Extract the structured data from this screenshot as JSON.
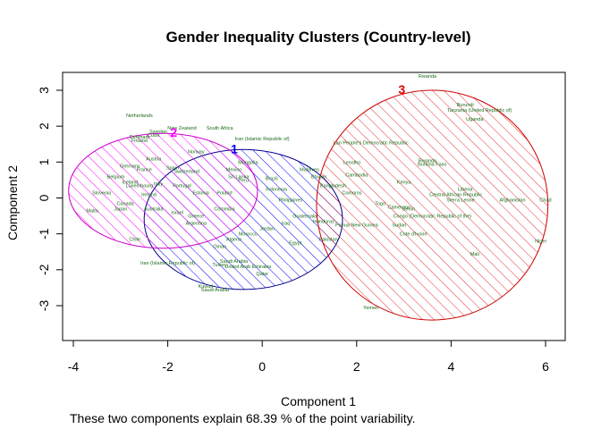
{
  "chart_data": {
    "type": "scatter",
    "title": "Gender Inequality Clusters (Country-level)",
    "xlabel": "Component 1",
    "ylabel": "Component 2",
    "footer": "These two components explain 68.39 % of the point variability.",
    "xlim": [
      -4,
      6
    ],
    "ylim": [
      -3,
      3
    ],
    "xticks": [
      "-4",
      "-2",
      "0",
      "2",
      "4",
      "6"
    ],
    "yticks": [
      "-3",
      "-2",
      "-1",
      "0",
      "1",
      "2",
      "3"
    ],
    "grid": false,
    "clusters": [
      {
        "label": "1",
        "color": "#0000ff",
        "border": "#00008b",
        "center": [
          -0.4,
          -0.6
        ],
        "rx": 2.1,
        "ry": 1.95
      },
      {
        "label": "2",
        "color": "#ff00ff",
        "border": "#cc00cc",
        "center": [
          -2.1,
          0.2
        ],
        "rx": 2.0,
        "ry": 1.6
      },
      {
        "label": "3",
        "color": "#dd0000",
        "border": "#cc0000",
        "center": [
          3.6,
          -0.2
        ],
        "rx": 2.45,
        "ry": 3.2
      }
    ],
    "points": [
      {
        "label": "Rwanda",
        "x": 3.5,
        "y": 3.35
      },
      {
        "label": "Burundi",
        "x": 4.3,
        "y": 2.55
      },
      {
        "label": "Tanzania (United Republic of)",
        "x": 4.6,
        "y": 2.4
      },
      {
        "label": "Uganda",
        "x": 4.5,
        "y": 2.15
      },
      {
        "label": "Lao People's Democratic Republic",
        "x": 2.3,
        "y": 1.5
      },
      {
        "label": "Lesotho",
        "x": 1.9,
        "y": 0.95
      },
      {
        "label": "Cambodia",
        "x": 2.0,
        "y": 0.6
      },
      {
        "label": "Bangladesh",
        "x": 1.5,
        "y": 0.3
      },
      {
        "label": "Rwanda",
        "x": 3.5,
        "y": 1.0
      },
      {
        "label": "Burkina Faso",
        "x": 3.6,
        "y": 0.9
      },
      {
        "label": "Kenya",
        "x": 3.0,
        "y": 0.4
      },
      {
        "label": "Liberia",
        "x": 4.3,
        "y": 0.2
      },
      {
        "label": "Central African Republic",
        "x": 4.1,
        "y": 0.05
      },
      {
        "label": "Sierra Leone",
        "x": 4.2,
        "y": -0.1
      },
      {
        "label": "Afghanistan",
        "x": 5.3,
        "y": -0.1
      },
      {
        "label": "Chad",
        "x": 6.0,
        "y": -0.1
      },
      {
        "label": "Comoros",
        "x": 1.9,
        "y": 0.1
      },
      {
        "label": "Togo",
        "x": 2.5,
        "y": -0.2
      },
      {
        "label": "Cameroon",
        "x": 2.9,
        "y": -0.3
      },
      {
        "label": "Benin",
        "x": 3.1,
        "y": -0.35
      },
      {
        "label": "Congo (Democratic Republic of the)",
        "x": 3.6,
        "y": -0.55
      },
      {
        "label": "Papua New Guinea",
        "x": 2.0,
        "y": -0.8
      },
      {
        "label": "Sudan",
        "x": 2.9,
        "y": -0.8
      },
      {
        "label": "Cote d'Ivoire",
        "x": 3.2,
        "y": -1.05
      },
      {
        "label": "Pakistan",
        "x": 1.4,
        "y": -1.2
      },
      {
        "label": "Niger",
        "x": 5.9,
        "y": -1.25
      },
      {
        "label": "Mali",
        "x": 4.5,
        "y": -1.6
      },
      {
        "label": "Yemen",
        "x": 2.3,
        "y": -3.1
      },
      {
        "label": "Iran (Islamic Republic of)",
        "x": 0.0,
        "y": 1.6
      },
      {
        "label": "Maldives",
        "x": 1.0,
        "y": 0.75
      },
      {
        "label": "Bhutan",
        "x": 1.2,
        "y": 0.55
      },
      {
        "label": "Mongolia",
        "x": -0.3,
        "y": 0.95
      },
      {
        "label": "Sri Lanka",
        "x": -0.5,
        "y": 0.55
      },
      {
        "label": "Indonesia",
        "x": 0.3,
        "y": 0.2
      },
      {
        "label": "Philippines",
        "x": 0.6,
        "y": -0.1
      },
      {
        "label": "Guatemala",
        "x": 0.9,
        "y": -0.55
      },
      {
        "label": "Honduras",
        "x": 1.3,
        "y": -0.7
      },
      {
        "label": "Iraq",
        "x": 0.5,
        "y": -0.75
      },
      {
        "label": "Egypt",
        "x": 0.7,
        "y": -1.3
      },
      {
        "label": "Jordan",
        "x": 0.1,
        "y": -0.9
      },
      {
        "label": "Morocco",
        "x": -0.3,
        "y": -1.05
      },
      {
        "label": "Algeria",
        "x": -0.6,
        "y": -1.2
      },
      {
        "label": "Oman",
        "x": -0.9,
        "y": -1.4
      },
      {
        "label": "Saudi Arabia",
        "x": -0.6,
        "y": -1.8
      },
      {
        "label": "Iran (Islamic Republic of)",
        "x": -2.0,
        "y": -1.85
      },
      {
        "label": "Turkey",
        "x": -0.9,
        "y": -1.9
      },
      {
        "label": "United Arab Emirates",
        "x": -0.3,
        "y": -1.95
      },
      {
        "label": "Kuwait",
        "x": -1.2,
        "y": -2.5
      },
      {
        "label": "Qatar",
        "x": 0.0,
        "y": -2.15
      },
      {
        "label": "Saudi Arabia",
        "x": -1.0,
        "y": -2.6
      },
      {
        "label": "Netherlands",
        "x": -2.6,
        "y": 2.25
      },
      {
        "label": "Sweden",
        "x": -2.2,
        "y": 1.8
      },
      {
        "label": "New Zealand",
        "x": -1.7,
        "y": 1.9
      },
      {
        "label": "South Africa",
        "x": -0.9,
        "y": 1.9
      },
      {
        "label": "Cuba",
        "x": -2.3,
        "y": 1.7
      },
      {
        "label": "Denmark",
        "x": -2.6,
        "y": 1.65
      },
      {
        "label": "Finland",
        "x": -2.6,
        "y": 1.55
      },
      {
        "label": "Norway",
        "x": -1.4,
        "y": 1.25
      },
      {
        "label": "Austria",
        "x": -2.3,
        "y": 1.05
      },
      {
        "label": "Germany",
        "x": -2.8,
        "y": 0.85
      },
      {
        "label": "France",
        "x": -2.5,
        "y": 0.75
      },
      {
        "label": "Spain",
        "x": -1.9,
        "y": 0.8
      },
      {
        "label": "Switzerland",
        "x": -1.6,
        "y": 0.7
      },
      {
        "label": "Belgium",
        "x": -3.1,
        "y": 0.55
      },
      {
        "label": "Iceland",
        "x": -2.8,
        "y": 0.4
      },
      {
        "label": "Italy",
        "x": -2.2,
        "y": 0.35
      },
      {
        "label": "Portugal",
        "x": -1.7,
        "y": 0.3
      },
      {
        "label": "Luxembourg",
        "x": -2.6,
        "y": 0.3
      },
      {
        "label": "Slovenia",
        "x": -3.4,
        "y": 0.1
      },
      {
        "label": "Ireland",
        "x": -2.4,
        "y": 0.05
      },
      {
        "label": "Estonia",
        "x": -1.3,
        "y": 0.1
      },
      {
        "label": "Poland",
        "x": -0.8,
        "y": 0.1
      },
      {
        "label": "Canada",
        "x": -2.9,
        "y": -0.2
      },
      {
        "label": "Australia",
        "x": -2.3,
        "y": -0.35
      },
      {
        "label": "Japan",
        "x": -3.0,
        "y": -0.35
      },
      {
        "label": "Israel",
        "x": -1.8,
        "y": -0.45
      },
      {
        "label": "Malta",
        "x": -3.6,
        "y": -0.4
      },
      {
        "label": "Greece",
        "x": -1.4,
        "y": -0.55
      },
      {
        "label": "Chile",
        "x": -2.7,
        "y": -1.2
      },
      {
        "label": "Mexico",
        "x": -0.6,
        "y": 0.75
      },
      {
        "label": "Peru",
        "x": -0.4,
        "y": 0.45
      },
      {
        "label": "Brazil",
        "x": 0.2,
        "y": 0.5
      },
      {
        "label": "Colombia",
        "x": -0.8,
        "y": -0.35
      },
      {
        "label": "Argentina",
        "x": -1.4,
        "y": -0.75
      }
    ]
  }
}
